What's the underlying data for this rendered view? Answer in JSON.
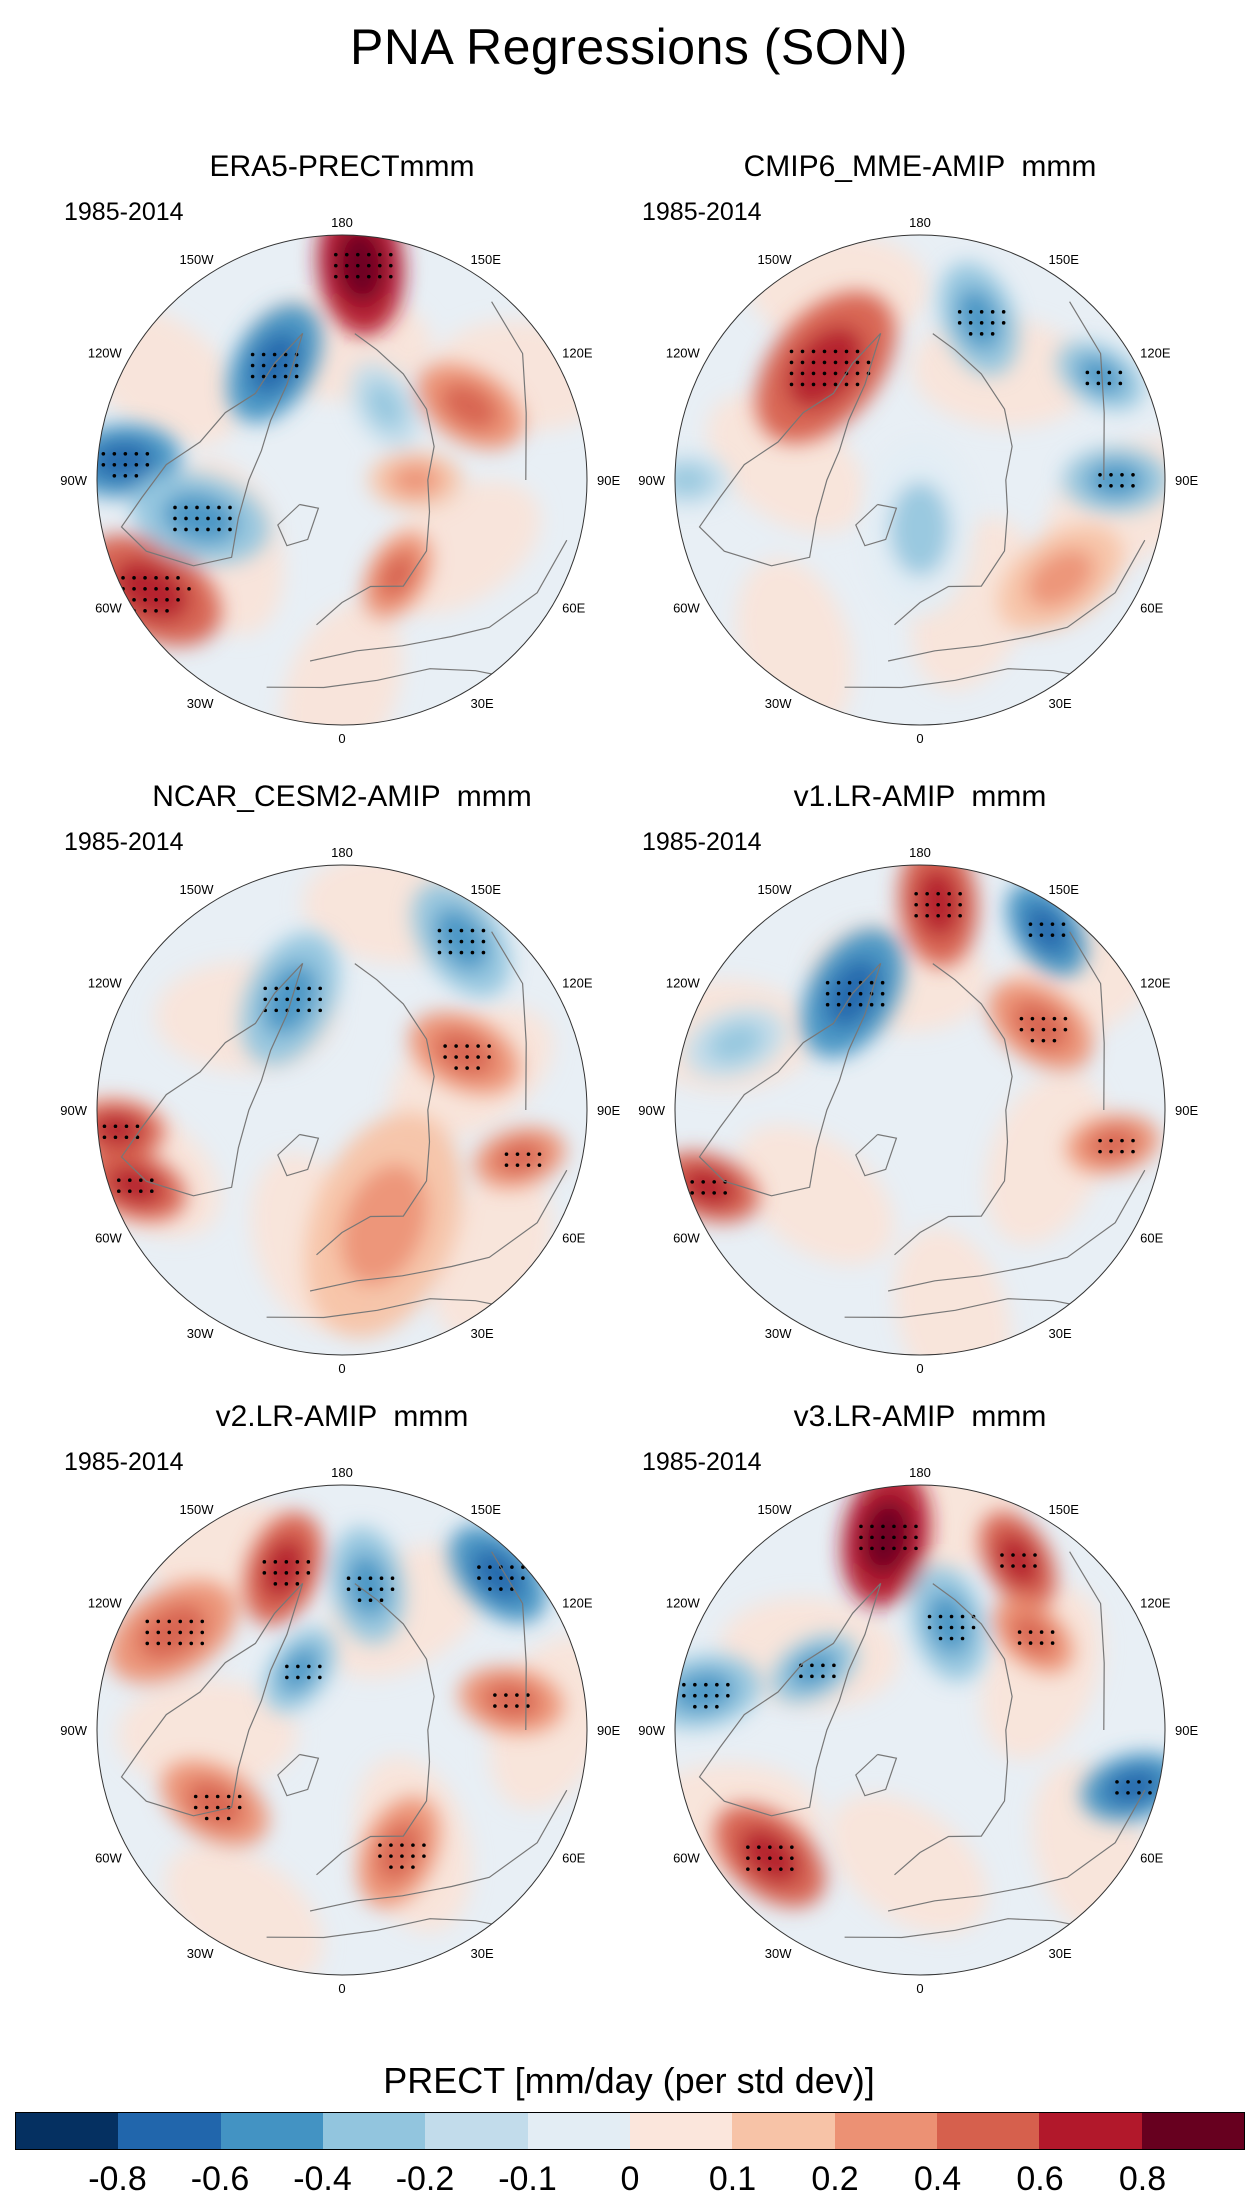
{
  "figure_title": "PNA Regressions (SON)",
  "colorbar": {
    "label": "PRECT [mm/day (per std dev)]",
    "colors": [
      "#053061",
      "#2166ac",
      "#4393c3",
      "#92c5de",
      "#c2dceb",
      "#e3edf4",
      "#fbe6dc",
      "#f7c3a7",
      "#ec9174",
      "#d6604d",
      "#b2182b",
      "#67001f"
    ],
    "tick_labels": [
      "-0.8",
      "-0.6",
      "-0.4",
      "-0.2",
      "-0.1",
      "0",
      "0.1",
      "0.2",
      "0.4",
      "0.6",
      "0.8"
    ]
  },
  "map_labels": {
    "top": "180",
    "bottom": "0",
    "left": "90W",
    "right": "90E",
    "upper_left_a": "150W",
    "upper_left_b": "120W",
    "upper_right_a": "150E",
    "upper_right_b": "120E",
    "lower_left_a": "60W",
    "lower_left_b": "30W",
    "lower_right_a": "60E",
    "lower_right_b": "30E"
  },
  "panels": [
    {
      "title": "ERA5-PRECTmmm",
      "period": "1985-2014",
      "anomalies": [
        {
          "lon": 175,
          "r": 0.88,
          "value": 0.75,
          "size": 1.2
        },
        {
          "lon": -150,
          "r": 0.55,
          "value": -0.5,
          "size": 1.1
        },
        {
          "lon": -95,
          "r": 0.9,
          "value": -0.45,
          "size": 1.0
        },
        {
          "lon": -60,
          "r": 0.9,
          "value": 0.4,
          "size": 1.3
        },
        {
          "lon": -75,
          "r": 0.6,
          "value": -0.25,
          "size": 1.2
        },
        {
          "lon": 120,
          "r": 0.6,
          "value": 0.2,
          "size": 1.0
        },
        {
          "lon": 30,
          "r": 0.45,
          "value": 0.2,
          "size": 0.8
        },
        {
          "lon": 90,
          "r": 0.3,
          "value": 0.15,
          "size": 0.8
        },
        {
          "lon": 150,
          "r": 0.35,
          "value": -0.15,
          "size": 0.8
        }
      ]
    },
    {
      "title": "CMIP6_MME-AMIP  mmm",
      "period": "1985-2014",
      "anomalies": [
        {
          "lon": -140,
          "r": 0.6,
          "value": 0.45,
          "size": 1.5
        },
        {
          "lon": 160,
          "r": 0.7,
          "value": -0.25,
          "size": 1.0
        },
        {
          "lon": 120,
          "r": 0.85,
          "value": -0.35,
          "size": 0.8
        },
        {
          "lon": 90,
          "r": 0.8,
          "value": -0.25,
          "size": 0.9
        },
        {
          "lon": 55,
          "r": 0.7,
          "value": 0.15,
          "size": 1.2
        },
        {
          "lon": -90,
          "r": 0.95,
          "value": -0.2,
          "size": 0.7
        },
        {
          "lon": 0,
          "r": 0.2,
          "value": -0.1,
          "size": 1.5
        }
      ]
    },
    {
      "title": "NCAR_CESM2-AMIP  mmm",
      "period": "1985-2014",
      "anomalies": [
        {
          "lon": -155,
          "r": 0.5,
          "value": -0.35,
          "size": 1.2
        },
        {
          "lon": 145,
          "r": 0.85,
          "value": -0.3,
          "size": 1.1
        },
        {
          "lon": 115,
          "r": 0.55,
          "value": 0.3,
          "size": 1.0
        },
        {
          "lon": 75,
          "r": 0.75,
          "value": 0.3,
          "size": 0.8
        },
        {
          "lon": -85,
          "r": 0.92,
          "value": 0.5,
          "size": 0.8
        },
        {
          "lon": -70,
          "r": 0.9,
          "value": 0.4,
          "size": 0.9
        },
        {
          "lon": 20,
          "r": 0.5,
          "value": 0.1,
          "size": 2.0
        }
      ]
    },
    {
      "title": "v1.LR-AMIP  mmm",
      "period": "1985-2014",
      "anomalies": [
        {
          "lon": 175,
          "r": 0.85,
          "value": 0.45,
          "size": 1.1
        },
        {
          "lon": -150,
          "r": 0.55,
          "value": -0.45,
          "size": 1.2
        },
        {
          "lon": 145,
          "r": 0.9,
          "value": -0.55,
          "size": 0.9
        },
        {
          "lon": 125,
          "r": 0.6,
          "value": 0.25,
          "size": 1.0
        },
        {
          "lon": -70,
          "r": 0.92,
          "value": 0.45,
          "size": 0.9
        },
        {
          "lon": 80,
          "r": 0.8,
          "value": 0.25,
          "size": 0.8
        },
        {
          "lon": -110,
          "r": 0.8,
          "value": -0.15,
          "size": 0.9
        }
      ]
    },
    {
      "title": "v2.LR-AMIP  mmm",
      "period": "1985-2014",
      "anomalies": [
        {
          "lon": -160,
          "r": 0.7,
          "value": 0.55,
          "size": 1.0
        },
        {
          "lon": -120,
          "r": 0.8,
          "value": 0.3,
          "size": 1.2
        },
        {
          "lon": 170,
          "r": 0.6,
          "value": -0.35,
          "size": 1.0
        },
        {
          "lon": 135,
          "r": 0.9,
          "value": -0.5,
          "size": 1.0
        },
        {
          "lon": 100,
          "r": 0.7,
          "value": 0.3,
          "size": 0.9
        },
        {
          "lon": -145,
          "r": 0.3,
          "value": -0.3,
          "size": 0.8
        },
        {
          "lon": 25,
          "r": 0.55,
          "value": 0.3,
          "size": 1.0
        },
        {
          "lon": -60,
          "r": 0.6,
          "value": 0.25,
          "size": 1.0
        }
      ]
    },
    {
      "title": "v3.LR-AMIP  mmm",
      "period": "1985-2014",
      "anomalies": [
        {
          "lon": -170,
          "r": 0.8,
          "value": 0.6,
          "size": 1.2
        },
        {
          "lon": 150,
          "r": 0.8,
          "value": 0.45,
          "size": 0.9
        },
        {
          "lon": 165,
          "r": 0.45,
          "value": -0.3,
          "size": 1.0
        },
        {
          "lon": 75,
          "r": 0.9,
          "value": -0.55,
          "size": 0.9
        },
        {
          "lon": -50,
          "r": 0.8,
          "value": 0.5,
          "size": 1.1
        },
        {
          "lon": -100,
          "r": 0.9,
          "value": -0.3,
          "size": 1.0
        },
        {
          "lon": 130,
          "r": 0.6,
          "value": 0.35,
          "size": 0.8
        },
        {
          "lon": -120,
          "r": 0.5,
          "value": -0.35,
          "size": 0.8
        }
      ]
    }
  ]
}
